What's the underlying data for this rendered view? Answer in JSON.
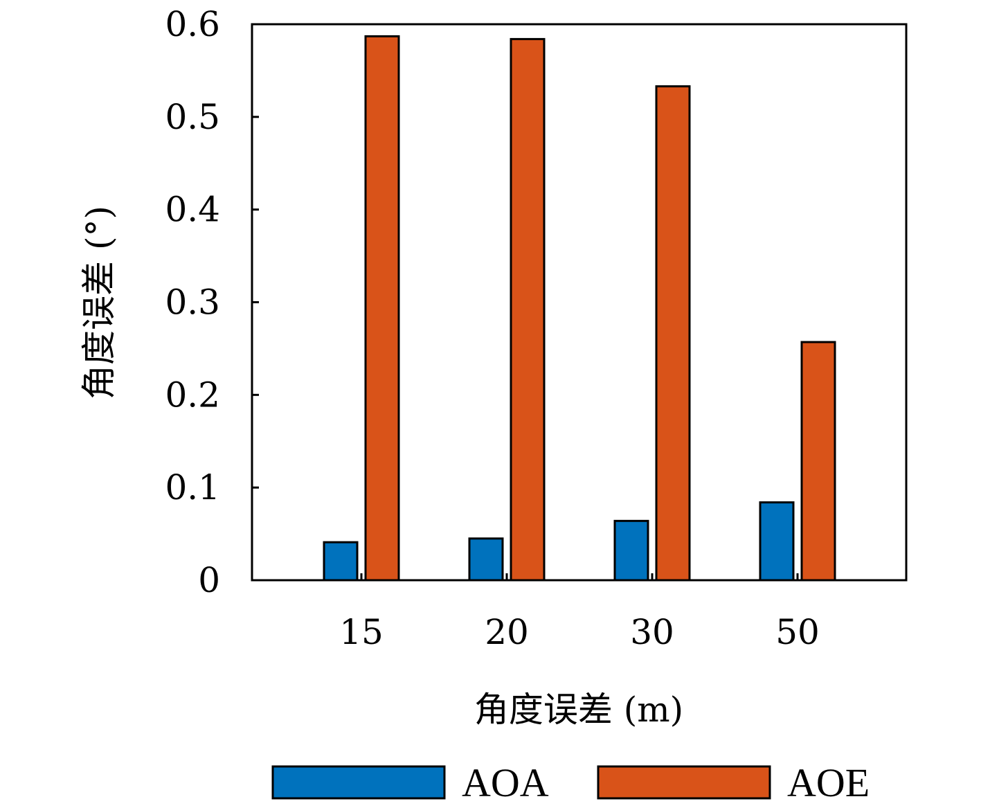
{
  "chart_data": {
    "type": "bar",
    "title": "",
    "xlabel": "角度误差 (m)",
    "ylabel": "角度误差 (°)",
    "categories": [
      "15",
      "20",
      "30",
      "50"
    ],
    "series": [
      {
        "name": "AOA",
        "color": "#0072BD",
        "values": [
          0.041,
          0.045,
          0.064,
          0.084
        ]
      },
      {
        "name": "AOE",
        "color": "#D95319",
        "values": [
          0.587,
          0.584,
          0.533,
          0.257
        ]
      }
    ],
    "ylim": [
      0,
      0.6
    ],
    "yticks": [
      "0",
      "0.1",
      "0.2",
      "0.3",
      "0.4",
      "0.5",
      "0.6"
    ],
    "ytick_values": [
      0,
      0.1,
      0.2,
      0.3,
      0.4,
      0.5,
      0.6
    ],
    "grid": false,
    "legend": {
      "position": "bottom",
      "orientation": "horizontal",
      "entries": [
        "AOA",
        "AOE"
      ]
    }
  }
}
